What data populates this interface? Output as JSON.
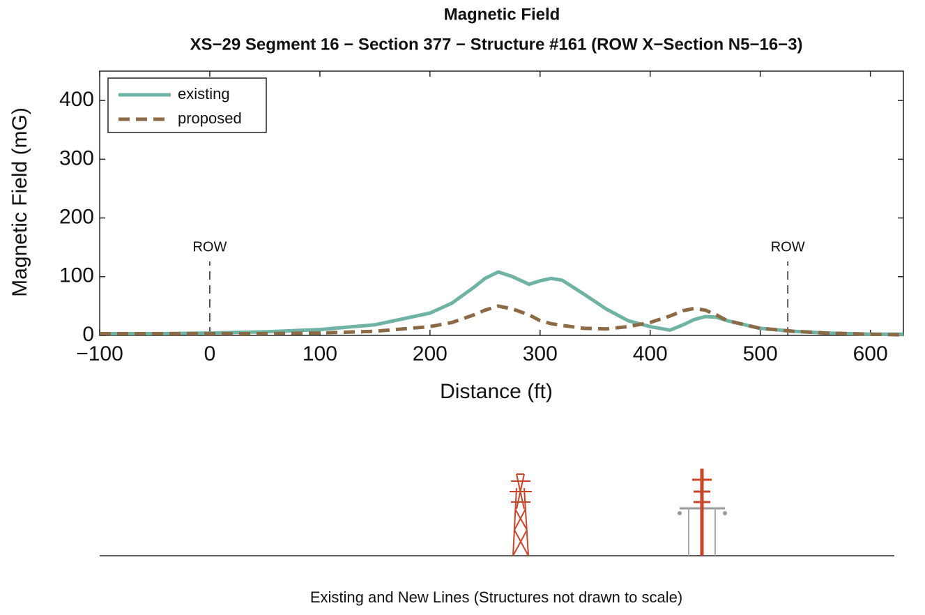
{
  "chart_data": {
    "type": "line",
    "title": "Magnetic Field",
    "subtitle": "XS−29 Segment 16 − Section 377 − Structure #161 (ROW X−Section N5−16−3)",
    "x_label": "Distance (ft)",
    "y_label": "Magnetic Field (mG)",
    "x": [
      -100,
      -50,
      0,
      50,
      100,
      150,
      200,
      220,
      240,
      250,
      262,
      275,
      290,
      300,
      310,
      320,
      340,
      360,
      380,
      400,
      418,
      430,
      440,
      450,
      460,
      470,
      500,
      530,
      560,
      600,
      630
    ],
    "series": [
      {
        "name": "existing",
        "color": "#6fb3a5",
        "dashed": false,
        "values": [
          3,
          3,
          4,
          6,
          10,
          18,
          38,
          55,
          82,
          97,
          108,
          100,
          87,
          93,
          97,
          94,
          70,
          45,
          25,
          15,
          9,
          18,
          27,
          32,
          31,
          25,
          12,
          7,
          4,
          2,
          2
        ]
      },
      {
        "name": "proposed",
        "color": "#8b6a45",
        "dashed": true,
        "values": [
          3,
          3,
          3,
          3,
          4,
          7,
          15,
          22,
          35,
          43,
          50,
          45,
          35,
          25,
          20,
          17,
          12,
          11,
          15,
          22,
          33,
          42,
          46,
          43,
          35,
          25,
          12,
          7,
          4,
          2,
          1
        ]
      }
    ],
    "xlim": [
      -100,
      630
    ],
    "ylim": [
      0,
      450
    ],
    "xticks": [
      {
        "value": -100,
        "label": "−100"
      },
      0,
      100,
      200,
      300,
      400,
      500,
      600
    ],
    "yticks": [
      0,
      100,
      200,
      300,
      400
    ],
    "grid": false,
    "legend": "upper-left",
    "annotations": [
      {
        "text": "ROW",
        "x": 0
      },
      {
        "text": "ROW",
        "x": 525
      }
    ],
    "caption": "Existing and New Lines (Structures not drawn to scale)"
  }
}
